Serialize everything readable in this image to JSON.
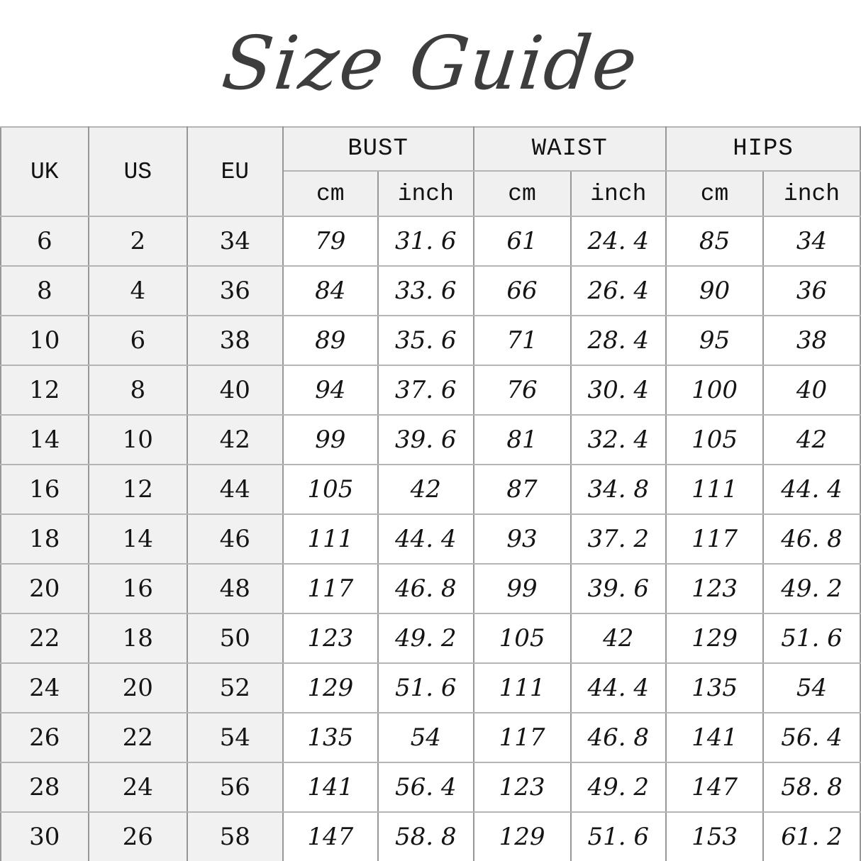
{
  "title": "Size Guide",
  "colors": {
    "page_bg": "#ffffff",
    "header_bg": "#f0f0f0",
    "size_col_bg": "#f1f1f1",
    "measure_col_bg": "#ffffff",
    "h_border": "#b5b5b5",
    "v_border": "#979797",
    "text": "#141414",
    "title_text": "#3d3d3d"
  },
  "table": {
    "headers": {
      "uk": "UK",
      "us": "US",
      "eu": "EU",
      "groups": [
        {
          "label": "BUST",
          "sub": [
            "cm",
            "inch"
          ]
        },
        {
          "label": "WAIST",
          "sub": [
            "cm",
            "inch"
          ]
        },
        {
          "label": "HIPS",
          "sub": [
            "cm",
            "inch"
          ]
        }
      ]
    },
    "cell_order": [
      "uk",
      "us",
      "eu",
      "bust_cm",
      "bust_inch",
      "waist_cm",
      "waist_inch",
      "hips_cm",
      "hips_inch"
    ],
    "rows": [
      {
        "uk": "6",
        "us": "2",
        "eu": "34",
        "bust_cm": "79",
        "bust_inch": "31. 6",
        "waist_cm": "61",
        "waist_inch": "24. 4",
        "hips_cm": "85",
        "hips_inch": "34"
      },
      {
        "uk": "8",
        "us": "4",
        "eu": "36",
        "bust_cm": "84",
        "bust_inch": "33. 6",
        "waist_cm": "66",
        "waist_inch": "26. 4",
        "hips_cm": "90",
        "hips_inch": "36"
      },
      {
        "uk": "10",
        "us": "6",
        "eu": "38",
        "bust_cm": "89",
        "bust_inch": "35. 6",
        "waist_cm": "71",
        "waist_inch": "28. 4",
        "hips_cm": "95",
        "hips_inch": "38"
      },
      {
        "uk": "12",
        "us": "8",
        "eu": "40",
        "bust_cm": "94",
        "bust_inch": "37. 6",
        "waist_cm": "76",
        "waist_inch": "30. 4",
        "hips_cm": "100",
        "hips_inch": "40"
      },
      {
        "uk": "14",
        "us": "10",
        "eu": "42",
        "bust_cm": "99",
        "bust_inch": "39. 6",
        "waist_cm": "81",
        "waist_inch": "32. 4",
        "hips_cm": "105",
        "hips_inch": "42"
      },
      {
        "uk": "16",
        "us": "12",
        "eu": "44",
        "bust_cm": "105",
        "bust_inch": "42",
        "waist_cm": "87",
        "waist_inch": "34. 8",
        "hips_cm": "111",
        "hips_inch": "44. 4"
      },
      {
        "uk": "18",
        "us": "14",
        "eu": "46",
        "bust_cm": "111",
        "bust_inch": "44. 4",
        "waist_cm": "93",
        "waist_inch": "37. 2",
        "hips_cm": "117",
        "hips_inch": "46. 8"
      },
      {
        "uk": "20",
        "us": "16",
        "eu": "48",
        "bust_cm": "117",
        "bust_inch": "46. 8",
        "waist_cm": "99",
        "waist_inch": "39. 6",
        "hips_cm": "123",
        "hips_inch": "49. 2"
      },
      {
        "uk": "22",
        "us": "18",
        "eu": "50",
        "bust_cm": "123",
        "bust_inch": "49. 2",
        "waist_cm": "105",
        "waist_inch": "42",
        "hips_cm": "129",
        "hips_inch": "51. 6"
      },
      {
        "uk": "24",
        "us": "20",
        "eu": "52",
        "bust_cm": "129",
        "bust_inch": "51. 6",
        "waist_cm": "111",
        "waist_inch": "44. 4",
        "hips_cm": "135",
        "hips_inch": "54"
      },
      {
        "uk": "26",
        "us": "22",
        "eu": "54",
        "bust_cm": "135",
        "bust_inch": "54",
        "waist_cm": "117",
        "waist_inch": "46. 8",
        "hips_cm": "141",
        "hips_inch": "56. 4"
      },
      {
        "uk": "28",
        "us": "24",
        "eu": "56",
        "bust_cm": "141",
        "bust_inch": "56. 4",
        "waist_cm": "123",
        "waist_inch": "49. 2",
        "hips_cm": "147",
        "hips_inch": "58. 8"
      },
      {
        "uk": "30",
        "us": "26",
        "eu": "58",
        "bust_cm": "147",
        "bust_inch": "58. 8",
        "waist_cm": "129",
        "waist_inch": "51. 6",
        "hips_cm": "153",
        "hips_inch": "61. 2"
      }
    ]
  },
  "chart_data": {
    "type": "table",
    "title": "Size Guide",
    "columns": [
      "UK",
      "US",
      "EU",
      "BUST cm",
      "BUST inch",
      "WAIST cm",
      "WAIST inch",
      "HIPS cm",
      "HIPS inch"
    ],
    "rows": [
      [
        6,
        2,
        34,
        79,
        31.6,
        61,
        24.4,
        85,
        34
      ],
      [
        8,
        4,
        36,
        84,
        33.6,
        66,
        26.4,
        90,
        36
      ],
      [
        10,
        6,
        38,
        89,
        35.6,
        71,
        28.4,
        95,
        38
      ],
      [
        12,
        8,
        40,
        94,
        37.6,
        76,
        30.4,
        100,
        40
      ],
      [
        14,
        10,
        42,
        99,
        39.6,
        81,
        32.4,
        105,
        42
      ],
      [
        16,
        12,
        44,
        105,
        42,
        87,
        34.8,
        111,
        44.4
      ],
      [
        18,
        14,
        46,
        111,
        44.4,
        93,
        37.2,
        117,
        46.8
      ],
      [
        20,
        16,
        48,
        117,
        46.8,
        99,
        39.6,
        123,
        49.2
      ],
      [
        22,
        18,
        50,
        123,
        49.2,
        105,
        42,
        129,
        51.6
      ],
      [
        24,
        20,
        52,
        129,
        51.6,
        111,
        44.4,
        135,
        54
      ],
      [
        26,
        22,
        54,
        135,
        54,
        117,
        46.8,
        141,
        56.4
      ],
      [
        28,
        24,
        56,
        141,
        56.4,
        123,
        49.2,
        147,
        58.8
      ],
      [
        30,
        26,
        58,
        147,
        58.8,
        129,
        51.6,
        153,
        61.2
      ]
    ]
  }
}
